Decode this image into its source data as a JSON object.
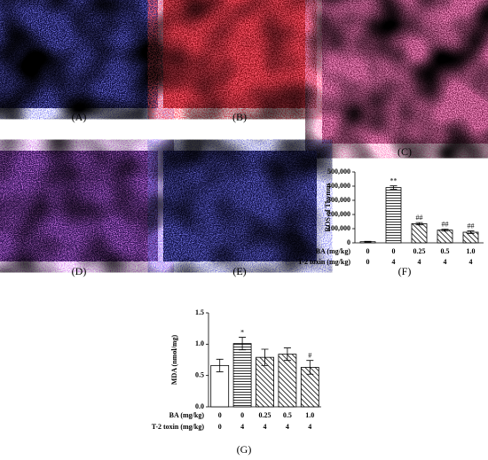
{
  "panel_labels": [
    "(A)",
    "(B)",
    "(C)",
    "(D)",
    "(E)",
    "(F)",
    "(G)"
  ],
  "chart_data": [
    {
      "type": "bar",
      "ylabel": "ROS of Thymus",
      "categories": [
        "0",
        "0",
        "0.25",
        "0.5",
        "1.0"
      ],
      "x_rows": [
        {
          "label": "BA (mg/kg)",
          "values": [
            "0",
            "0",
            "0.25",
            "0.5",
            "1.0"
          ]
        },
        {
          "label": "T-2 toxin (mg/kg)",
          "values": [
            "0",
            "4",
            "4",
            "4",
            "4"
          ]
        }
      ],
      "values": [
        8000,
        390000,
        135000,
        90000,
        75000
      ],
      "errors": [
        3000,
        12000,
        8000,
        7000,
        9000
      ],
      "hatch": [
        "open",
        "horizontal",
        "diagonal",
        "diagonal",
        "diagonal"
      ],
      "marks": [
        null,
        "**",
        "##",
        "##",
        "##"
      ],
      "ylim": [
        0,
        500000
      ],
      "yticks": [
        0,
        {
          "value": 100000,
          "label": "100,000"
        },
        {
          "value": 200000,
          "label": "200,000"
        },
        {
          "value": 300000,
          "label": "300,000"
        },
        {
          "value": 400000,
          "label": "400,000"
        },
        {
          "value": 500000,
          "label": "500,000"
        }
      ]
    },
    {
      "type": "bar",
      "ylabel": "MDA (nmol/mg)",
      "categories": [
        "0",
        "0",
        "0.25",
        "0.5",
        "1.0"
      ],
      "x_rows": [
        {
          "label": "BA (mg/kg)",
          "values": [
            "0",
            "0",
            "0.25",
            "0.5",
            "1.0"
          ]
        },
        {
          "label": "T-2 toxin (mg/kg)",
          "values": [
            "0",
            "4",
            "4",
            "4",
            "4"
          ]
        }
      ],
      "values": [
        0.66,
        1.01,
        0.79,
        0.84,
        0.63
      ],
      "errors": [
        0.1,
        0.1,
        0.13,
        0.1,
        0.11
      ],
      "hatch": [
        "open",
        "horizontal",
        "diagonal",
        "diagonal",
        "diagonal"
      ],
      "marks": [
        null,
        "*",
        null,
        null,
        "#"
      ],
      "ylim": [
        0,
        1.5
      ],
      "yticks": [
        {
          "value": 0,
          "label": "0.0"
        },
        {
          "value": 0.5,
          "label": "0.5"
        },
        {
          "value": 1.0,
          "label": "1.0"
        },
        {
          "value": 1.5,
          "label": "1.5"
        }
      ]
    }
  ]
}
